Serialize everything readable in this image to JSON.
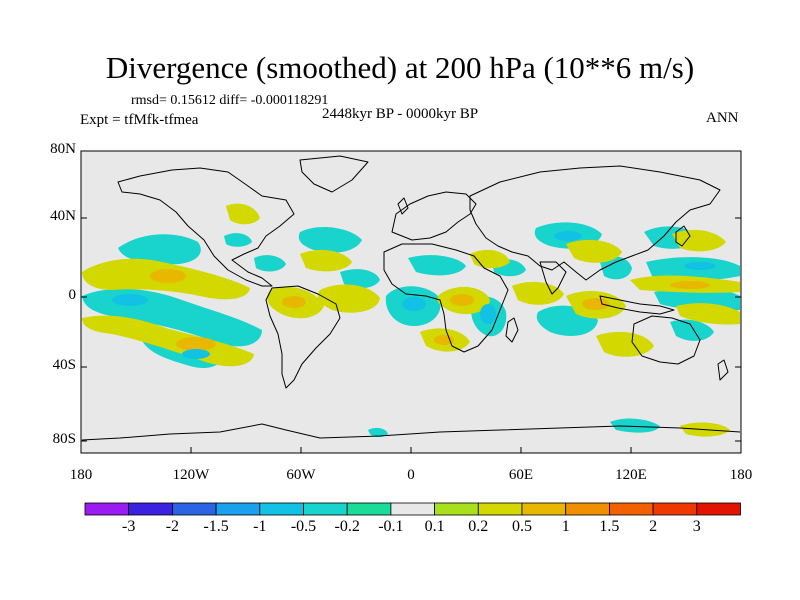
{
  "header": {
    "title": "Divergence (smoothed) at 200 hPa (10**6 m/s)",
    "stats": "rmsd= 0.15612 diff= -0.000118291",
    "experiment": "Expt = tfMfk-tfmea",
    "period": "2448kyr BP - 0000kyr BP",
    "season": "ANN"
  },
  "axes": {
    "y_ticks": [
      "80N",
      "40N",
      "0",
      "40S",
      "80S"
    ],
    "x_ticks": [
      "180",
      "120W",
      "60W",
      "0",
      "60E",
      "120E",
      "180"
    ]
  },
  "colorbar": {
    "labels": [
      "-3",
      "-2",
      "-1.5",
      "-1",
      "-0.5",
      "-0.2",
      "-0.1",
      "0.1",
      "0.2",
      "0.5",
      "1",
      "1.5",
      "2",
      "3"
    ],
    "colors": [
      "#9a1cf0",
      "#3a22e0",
      "#2a64e4",
      "#1aa0ee",
      "#12c2e4",
      "#18d4cc",
      "#18dc98",
      "#e8e8e8",
      "#a8e01c",
      "#d2d800",
      "#e8b800",
      "#f09000",
      "#f26000",
      "#ee3800",
      "#e21400"
    ]
  },
  "colors": {
    "background": "#e8e8e8",
    "coast": "#000000"
  }
}
